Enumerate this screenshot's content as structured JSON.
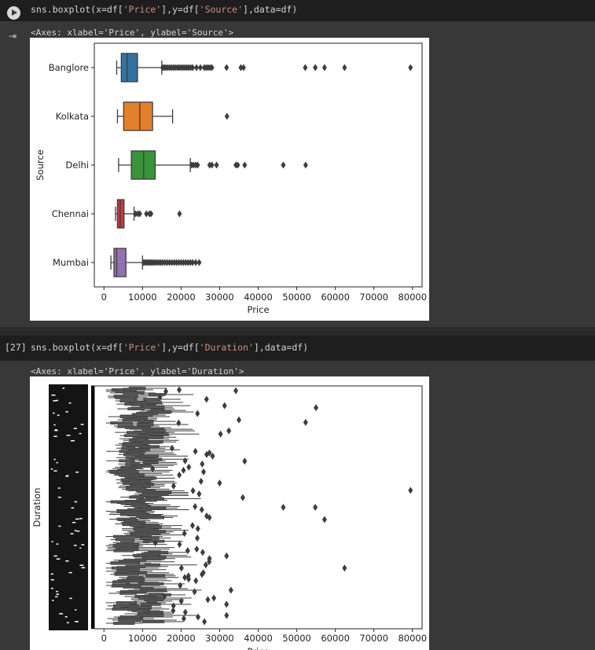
{
  "cell1": {
    "code_prefix": "sns.boxplot(x=df[",
    "code_arg1": "'Price'",
    "code_mid": "],y=df[",
    "code_arg2": "'Source'",
    "code_suffix": "],data=df)",
    "output_text": "<Axes: xlabel='Price', ylabel='Source'>",
    "run_icon": "play-icon",
    "output_icon": "output-arrow-icon"
  },
  "cell2": {
    "execution_count": "[27]",
    "code_prefix": "sns.boxplot(x=df[",
    "code_arg1": "'Price'",
    "code_mid": "],y=df[",
    "code_arg2": "'Duration'",
    "code_suffix": "],data=df)",
    "output_text": "<Axes: xlabel='Price', ylabel='Duration'>"
  },
  "colors": {
    "string_literal": "#ce9178",
    "background": "#383838",
    "code_bar": "#1e1e1e"
  },
  "chart_data": [
    {
      "type": "box",
      "orientation": "horizontal",
      "xlabel": "Price",
      "ylabel": "Source",
      "xlim": [
        -2500,
        82500
      ],
      "xticks": [
        0,
        10000,
        20000,
        30000,
        40000,
        50000,
        60000,
        70000,
        80000
      ],
      "categories": [
        "Banglore",
        "Kolkata",
        "Delhi",
        "Chennai",
        "Mumbai"
      ],
      "series": [
        {
          "category": "Banglore",
          "color": "#3274a1",
          "q1": 4500,
          "median": 6000,
          "q3": 8700,
          "whisker_low": 3300,
          "whisker_high": 15000,
          "outliers": [
            15200,
            15600,
            16000,
            16500,
            17000,
            17500,
            18000,
            18500,
            19000,
            19500,
            20000,
            20500,
            21000,
            21500,
            22000,
            22500,
            23000,
            24000,
            25000,
            26000,
            26500,
            27000,
            27500,
            28000,
            31800,
            35500,
            36200,
            52200,
            54800,
            57200,
            62400,
            79500
          ]
        },
        {
          "category": "Kolkata",
          "color": "#e1812c",
          "q1": 5100,
          "median": 9300,
          "q3": 12600,
          "whisker_low": 3500,
          "whisker_high": 17800,
          "outliers": [
            31900
          ]
        },
        {
          "category": "Delhi",
          "color": "#3a923a",
          "q1": 7100,
          "median": 10300,
          "q3": 13300,
          "whisker_low": 3800,
          "whisker_high": 22400,
          "outliers": [
            22700,
            23200,
            23800,
            24300,
            27400,
            28000,
            29200,
            34200,
            34700,
            36500,
            46500,
            52300
          ]
        },
        {
          "category": "Chennai",
          "color": "#c03d3e",
          "q1": 3500,
          "median": 4200,
          "q3": 5200,
          "whisker_low": 3000,
          "whisker_high": 7800,
          "outliers": [
            8200,
            8800,
            9300,
            11000,
            11800,
            12200,
            19600
          ]
        },
        {
          "category": "Mumbai",
          "color": "#9372b2",
          "q1": 2600,
          "median": 3300,
          "q3": 5700,
          "whisker_low": 1800,
          "whisker_high": 10000,
          "outliers": [
            10300,
            10700,
            11100,
            11500,
            11900,
            12300,
            12700,
            13200,
            13700,
            14200,
            14700,
            15200,
            15800,
            16400,
            17000,
            17600,
            18200,
            18800,
            19400,
            20000,
            20600,
            21200,
            21800,
            22400,
            23000,
            23800,
            24700
          ]
        }
      ]
    },
    {
      "type": "box",
      "orientation": "horizontal",
      "xlabel": "Price",
      "ylabel": "Duration",
      "xlim": [
        -2500,
        82500
      ],
      "xticks": [
        0,
        10000,
        20000,
        30000,
        40000,
        50000,
        60000,
        70000,
        80000
      ],
      "note_categories": "Duration category tick labels overlap and are illegible",
      "outliers_highlight": [
        79500,
        62400,
        57200,
        55000,
        54800,
        52300,
        46500,
        36500,
        36000,
        35000,
        34200,
        31800,
        30000
      ]
    }
  ]
}
